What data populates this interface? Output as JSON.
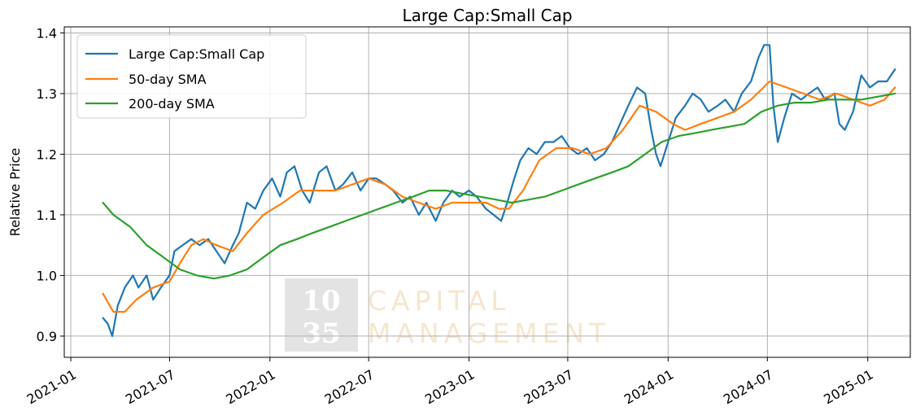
{
  "chart_data": {
    "type": "line",
    "title": "Large Cap:Small Cap",
    "xlabel": "",
    "ylabel": "Relative Price",
    "xlim": [
      "2020-12-20",
      "2025-03-20"
    ],
    "ylim": [
      0.865,
      1.41
    ],
    "grid": true,
    "legend_position": "top-left",
    "x_ticks": [
      "2021-01",
      "2021-07",
      "2022-01",
      "2022-07",
      "2023-01",
      "2023-07",
      "2024-01",
      "2024-07",
      "2025-01"
    ],
    "y_ticks": [
      "0.9",
      "1.0",
      "1.1",
      "1.2",
      "1.3",
      "1.4"
    ],
    "y_tick_values": [
      0.9,
      1.0,
      1.1,
      1.2,
      1.3,
      1.4
    ],
    "watermark": {
      "number_line1": "10",
      "number_line2": "35",
      "text_line1": "CAPITAL",
      "text_line2": "MANAGEMENT"
    },
    "series": [
      {
        "name": "Large Cap:Small Cap",
        "color": "#1f77b4",
        "points": [
          [
            "2021-03-01",
            0.93
          ],
          [
            "2021-03-10",
            0.92
          ],
          [
            "2021-03-18",
            0.9
          ],
          [
            "2021-03-28",
            0.95
          ],
          [
            "2021-04-10",
            0.98
          ],
          [
            "2021-04-25",
            1.0
          ],
          [
            "2021-05-05",
            0.98
          ],
          [
            "2021-05-20",
            1.0
          ],
          [
            "2021-06-01",
            0.96
          ],
          [
            "2021-06-15",
            0.98
          ],
          [
            "2021-07-01",
            1.0
          ],
          [
            "2021-07-10",
            1.04
          ],
          [
            "2021-07-25",
            1.05
          ],
          [
            "2021-08-10",
            1.06
          ],
          [
            "2021-08-25",
            1.05
          ],
          [
            "2021-09-10",
            1.06
          ],
          [
            "2021-09-25",
            1.04
          ],
          [
            "2021-10-10",
            1.02
          ],
          [
            "2021-10-25",
            1.05
          ],
          [
            "2021-11-05",
            1.07
          ],
          [
            "2021-11-20",
            1.12
          ],
          [
            "2021-12-05",
            1.11
          ],
          [
            "2021-12-20",
            1.14
          ],
          [
            "2022-01-05",
            1.16
          ],
          [
            "2022-01-20",
            1.13
          ],
          [
            "2022-02-01",
            1.17
          ],
          [
            "2022-02-15",
            1.18
          ],
          [
            "2022-03-01",
            1.14
          ],
          [
            "2022-03-15",
            1.12
          ],
          [
            "2022-04-01",
            1.17
          ],
          [
            "2022-04-15",
            1.18
          ],
          [
            "2022-05-01",
            1.14
          ],
          [
            "2022-05-15",
            1.15
          ],
          [
            "2022-06-01",
            1.17
          ],
          [
            "2022-06-16",
            1.14
          ],
          [
            "2022-07-01",
            1.16
          ],
          [
            "2022-07-15",
            1.16
          ],
          [
            "2022-08-01",
            1.15
          ],
          [
            "2022-08-15",
            1.14
          ],
          [
            "2022-09-01",
            1.12
          ],
          [
            "2022-09-15",
            1.13
          ],
          [
            "2022-10-01",
            1.1
          ],
          [
            "2022-10-15",
            1.12
          ],
          [
            "2022-11-01",
            1.09
          ],
          [
            "2022-11-15",
            1.12
          ],
          [
            "2022-12-01",
            1.14
          ],
          [
            "2022-12-15",
            1.13
          ],
          [
            "2023-01-01",
            1.14
          ],
          [
            "2023-01-15",
            1.13
          ],
          [
            "2023-02-01",
            1.11
          ],
          [
            "2023-02-15",
            1.1
          ],
          [
            "2023-03-01",
            1.09
          ],
          [
            "2023-03-12",
            1.12
          ],
          [
            "2023-03-25",
            1.16
          ],
          [
            "2023-04-05",
            1.19
          ],
          [
            "2023-04-20",
            1.21
          ],
          [
            "2023-05-05",
            1.2
          ],
          [
            "2023-05-20",
            1.22
          ],
          [
            "2023-06-05",
            1.22
          ],
          [
            "2023-06-20",
            1.23
          ],
          [
            "2023-07-05",
            1.21
          ],
          [
            "2023-07-20",
            1.2
          ],
          [
            "2023-08-05",
            1.21
          ],
          [
            "2023-08-20",
            1.19
          ],
          [
            "2023-09-05",
            1.2
          ],
          [
            "2023-09-20",
            1.22
          ],
          [
            "2023-10-05",
            1.25
          ],
          [
            "2023-10-20",
            1.28
          ],
          [
            "2023-11-05",
            1.31
          ],
          [
            "2023-11-20",
            1.3
          ],
          [
            "2023-12-01",
            1.24
          ],
          [
            "2023-12-10",
            1.2
          ],
          [
            "2023-12-18",
            1.18
          ],
          [
            "2024-01-01",
            1.22
          ],
          [
            "2024-01-15",
            1.26
          ],
          [
            "2024-02-01",
            1.28
          ],
          [
            "2024-02-15",
            1.3
          ],
          [
            "2024-03-01",
            1.29
          ],
          [
            "2024-03-15",
            1.27
          ],
          [
            "2024-04-01",
            1.28
          ],
          [
            "2024-04-15",
            1.29
          ],
          [
            "2024-05-01",
            1.27
          ],
          [
            "2024-05-15",
            1.3
          ],
          [
            "2024-06-01",
            1.32
          ],
          [
            "2024-06-15",
            1.36
          ],
          [
            "2024-06-25",
            1.38
          ],
          [
            "2024-07-05",
            1.38
          ],
          [
            "2024-07-12",
            1.28
          ],
          [
            "2024-07-20",
            1.22
          ],
          [
            "2024-08-01",
            1.26
          ],
          [
            "2024-08-15",
            1.3
          ],
          [
            "2024-09-01",
            1.29
          ],
          [
            "2024-09-15",
            1.3
          ],
          [
            "2024-10-01",
            1.31
          ],
          [
            "2024-10-15",
            1.29
          ],
          [
            "2024-11-01",
            1.3
          ],
          [
            "2024-11-10",
            1.25
          ],
          [
            "2024-11-20",
            1.24
          ],
          [
            "2024-12-05",
            1.27
          ],
          [
            "2024-12-20",
            1.33
          ],
          [
            "2025-01-05",
            1.31
          ],
          [
            "2025-01-20",
            1.32
          ],
          [
            "2025-02-05",
            1.32
          ],
          [
            "2025-02-20",
            1.34
          ]
        ]
      },
      {
        "name": "50-day SMA",
        "color": "#ff7f0e",
        "points": [
          [
            "2021-03-01",
            0.97
          ],
          [
            "2021-03-20",
            0.94
          ],
          [
            "2021-04-10",
            0.94
          ],
          [
            "2021-05-01",
            0.96
          ],
          [
            "2021-06-01",
            0.98
          ],
          [
            "2021-07-01",
            0.99
          ],
          [
            "2021-07-20",
            1.02
          ],
          [
            "2021-08-10",
            1.05
          ],
          [
            "2021-09-01",
            1.06
          ],
          [
            "2021-09-25",
            1.05
          ],
          [
            "2021-10-25",
            1.04
          ],
          [
            "2021-11-20",
            1.07
          ],
          [
            "2021-12-20",
            1.1
          ],
          [
            "2022-01-25",
            1.12
          ],
          [
            "2022-02-25",
            1.14
          ],
          [
            "2022-04-01",
            1.14
          ],
          [
            "2022-05-01",
            1.14
          ],
          [
            "2022-06-01",
            1.15
          ],
          [
            "2022-07-01",
            1.16
          ],
          [
            "2022-08-01",
            1.15
          ],
          [
            "2022-09-01",
            1.13
          ],
          [
            "2022-10-01",
            1.12
          ],
          [
            "2022-11-01",
            1.11
          ],
          [
            "2022-12-01",
            1.12
          ],
          [
            "2023-01-01",
            1.12
          ],
          [
            "2023-02-01",
            1.12
          ],
          [
            "2023-02-25",
            1.11
          ],
          [
            "2023-03-15",
            1.11
          ],
          [
            "2023-04-10",
            1.14
          ],
          [
            "2023-05-10",
            1.19
          ],
          [
            "2023-06-10",
            1.21
          ],
          [
            "2023-07-10",
            1.21
          ],
          [
            "2023-08-10",
            1.2
          ],
          [
            "2023-09-10",
            1.21
          ],
          [
            "2023-10-10",
            1.24
          ],
          [
            "2023-11-10",
            1.28
          ],
          [
            "2023-12-10",
            1.27
          ],
          [
            "2024-01-10",
            1.25
          ],
          [
            "2024-02-01",
            1.24
          ],
          [
            "2024-03-01",
            1.25
          ],
          [
            "2024-04-01",
            1.26
          ],
          [
            "2024-05-01",
            1.27
          ],
          [
            "2024-06-01",
            1.29
          ],
          [
            "2024-07-05",
            1.32
          ],
          [
            "2024-08-05",
            1.31
          ],
          [
            "2024-09-05",
            1.3
          ],
          [
            "2024-10-05",
            1.29
          ],
          [
            "2024-11-05",
            1.3
          ],
          [
            "2024-12-05",
            1.29
          ],
          [
            "2025-01-05",
            1.28
          ],
          [
            "2025-02-01",
            1.29
          ],
          [
            "2025-02-20",
            1.31
          ]
        ]
      },
      {
        "name": "200-day SMA",
        "color": "#2ca02c",
        "points": [
          [
            "2021-03-01",
            1.12
          ],
          [
            "2021-03-20",
            1.1
          ],
          [
            "2021-04-20",
            1.08
          ],
          [
            "2021-05-20",
            1.05
          ],
          [
            "2021-06-20",
            1.03
          ],
          [
            "2021-07-20",
            1.01
          ],
          [
            "2021-08-20",
            1.0
          ],
          [
            "2021-09-20",
            0.995
          ],
          [
            "2021-10-20",
            1.0
          ],
          [
            "2021-11-20",
            1.01
          ],
          [
            "2021-12-20",
            1.03
          ],
          [
            "2022-01-20",
            1.05
          ],
          [
            "2022-02-20",
            1.06
          ],
          [
            "2022-03-20",
            1.07
          ],
          [
            "2022-04-20",
            1.08
          ],
          [
            "2022-05-20",
            1.09
          ],
          [
            "2022-06-20",
            1.1
          ],
          [
            "2022-07-20",
            1.11
          ],
          [
            "2022-08-20",
            1.12
          ],
          [
            "2022-09-20",
            1.13
          ],
          [
            "2022-10-20",
            1.14
          ],
          [
            "2022-11-20",
            1.14
          ],
          [
            "2022-12-20",
            1.135
          ],
          [
            "2023-01-20",
            1.13
          ],
          [
            "2023-02-20",
            1.125
          ],
          [
            "2023-03-20",
            1.12
          ],
          [
            "2023-04-20",
            1.125
          ],
          [
            "2023-05-20",
            1.13
          ],
          [
            "2023-06-20",
            1.14
          ],
          [
            "2023-07-20",
            1.15
          ],
          [
            "2023-08-20",
            1.16
          ],
          [
            "2023-09-20",
            1.17
          ],
          [
            "2023-10-20",
            1.18
          ],
          [
            "2023-11-20",
            1.2
          ],
          [
            "2023-12-20",
            1.22
          ],
          [
            "2024-01-20",
            1.23
          ],
          [
            "2024-02-20",
            1.235
          ],
          [
            "2024-03-20",
            1.24
          ],
          [
            "2024-04-20",
            1.245
          ],
          [
            "2024-05-20",
            1.25
          ],
          [
            "2024-06-20",
            1.27
          ],
          [
            "2024-07-20",
            1.28
          ],
          [
            "2024-08-20",
            1.285
          ],
          [
            "2024-09-20",
            1.285
          ],
          [
            "2024-10-20",
            1.29
          ],
          [
            "2024-11-20",
            1.29
          ],
          [
            "2024-12-20",
            1.29
          ],
          [
            "2025-01-20",
            1.295
          ],
          [
            "2025-02-20",
            1.3
          ]
        ]
      }
    ]
  }
}
